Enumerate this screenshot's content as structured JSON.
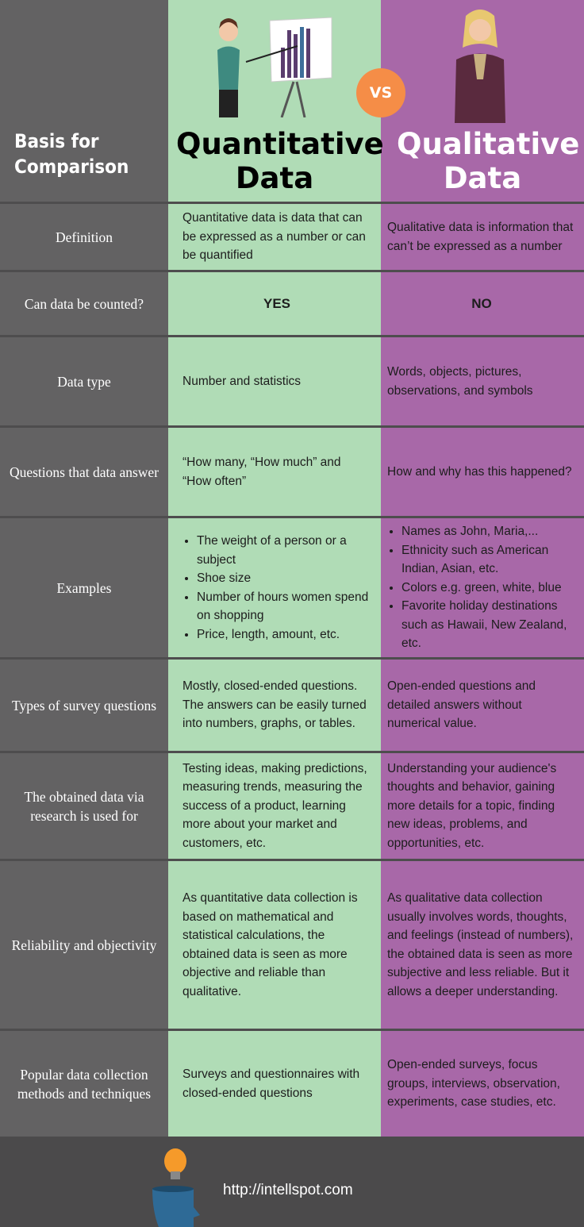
{
  "header": {
    "basis": "Basis for Comparison",
    "quant": "Quantitative Data",
    "qual": "Qualitative Data",
    "vs": "VS"
  },
  "colors": {
    "label_column": "#636263",
    "quantitative": "#b0dcb6",
    "qualitative": "#a868a8",
    "vs_badge": "#f58d47",
    "footer": "#4b4a4b"
  },
  "rows": [
    {
      "label": "Definition",
      "quant": "Quantitative data is data that can be expressed as a number or can be quantified",
      "qual": "Qualitative data is information that can’t be expressed as a number"
    },
    {
      "label": "Can data be counted?",
      "quant": "YES",
      "qual": "NO"
    },
    {
      "label": "Data type",
      "quant": "Number and statistics",
      "qual": "Words, objects, pictures, observations, and symbols"
    },
    {
      "label": "Questions that data answer",
      "quant": "“How many, “How much” and “How often”",
      "qual": "How and why has this happened?"
    },
    {
      "label": "Examples",
      "quant_list": [
        "The weight of a person or a subject",
        "Shoe size",
        "Number of hours women spend on shopping",
        "Price, length, amount, etc."
      ],
      "qual_list": [
        "Names as John, Maria,...",
        "Ethnicity such as American Indian, Asian, etc.",
        "Colors e.g. green, white, blue",
        "Favorite holiday destinations such as Hawaii, New Zealand, etc."
      ]
    },
    {
      "label": "Types of survey questions",
      "quant": "Mostly, closed-ended questions. The answers can be easily turned into numbers, graphs, or tables.",
      "qual": "Open-ended questions and detailed answers without numerical value."
    },
    {
      "label": "The obtained data via research is used for",
      "quant": "Testing ideas, making predictions, measuring trends, measuring the success of a product, learning more about your market and customers, etc.",
      "qual": "Understanding your audience's thoughts and behavior, gaining more details for a topic, finding new ideas, problems, and opportunities, etc."
    },
    {
      "label": "Reliability and objectivity",
      "quant": "As quantitative data collection is based on mathematical and statistical calculations, the obtained data is seen as more objective and reliable than qualitative.",
      "qual": "As qualitative data collection usually involves words, thoughts, and feelings (instead of numbers), the obtained data is seen as more subjective and less reliable. But it allows a deeper understanding."
    },
    {
      "label": "Popular data collection methods and techniques",
      "quant": "Surveys and questionnaires with closed-ended questions",
      "qual": "Open-ended surveys, focus groups, interviews, observation, experiments, case studies, etc."
    }
  ],
  "footer": {
    "url": "http://intellspot.com"
  }
}
